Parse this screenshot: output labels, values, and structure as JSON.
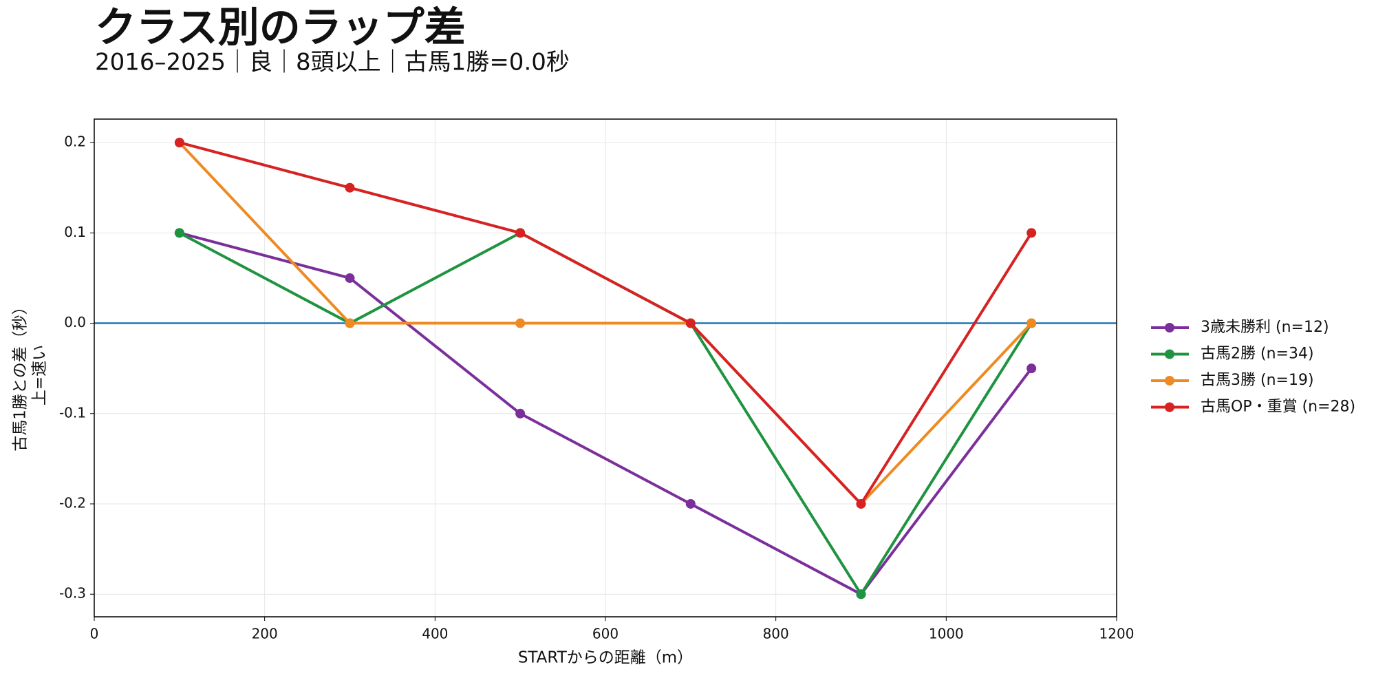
{
  "chart_data": {
    "type": "line",
    "title": "クラス別のラップ差",
    "subtitle": "2016–2025｜良｜8頭以上｜古馬1勝=0.0秒",
    "x_label": "STARTからの距離（m）",
    "y_label": [
      "古馬1勝との差（秒）",
      "上=速い"
    ],
    "x": [
      100,
      300,
      500,
      700,
      900,
      1100
    ],
    "series": [
      {
        "name": "3歳未勝利 (n=12)",
        "color": "#7b2f9b",
        "values": [
          0.1,
          0.05,
          -0.1,
          -0.2,
          -0.3,
          -0.05
        ]
      },
      {
        "name": "古馬2勝 (n=34)",
        "color": "#1f9440",
        "values": [
          0.1,
          0,
          0.1,
          0,
          -0.3,
          0
        ]
      },
      {
        "name": "古馬3勝 (n=19)",
        "color": "#ef8a22",
        "values": [
          0.2,
          0,
          0,
          0,
          -0.2,
          0
        ]
      },
      {
        "name": "古馬OP・重賞 (n=28)",
        "color": "#d62222",
        "values": [
          0.2,
          0.15,
          0.1,
          0,
          -0.2,
          0.1
        ]
      }
    ],
    "reference_line": {
      "value": 0,
      "color": "#1f77b4"
    },
    "xlim": [
      0,
      1200
    ],
    "xticks": [
      0,
      200,
      400,
      600,
      800,
      1000,
      1200
    ],
    "ylim": [
      -0.325,
      0.226
    ],
    "yticks": [
      -0.3,
      -0.2,
      -0.1,
      {
        "value": 0,
        "label": "0.0"
      },
      0.1,
      0.2
    ],
    "grid": true,
    "legend": "right"
  }
}
